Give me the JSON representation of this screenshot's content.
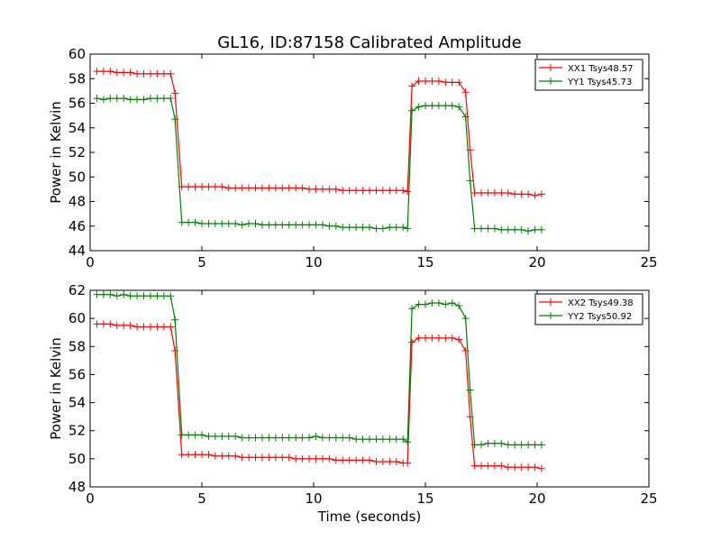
{
  "chart_data": [
    {
      "type": "line",
      "title": "GL16, ID:87158 Calibrated Amplitude",
      "xlabel": "",
      "ylabel": "Power in Kelvin",
      "xlim": [
        0,
        25
      ],
      "ylim": [
        44,
        60
      ],
      "xticks": [
        "0",
        "5",
        "10",
        "15",
        "20",
        "25"
      ],
      "yticks": [
        "44",
        "46",
        "48",
        "50",
        "52",
        "54",
        "56",
        "58",
        "60"
      ],
      "grid": false,
      "legend_position": "top-right",
      "series": [
        {
          "name": "XX1 Tsys48.57",
          "color": "#ff0000",
          "x": [
            0.3,
            0.6,
            0.9,
            1.2,
            1.5,
            1.8,
            2.1,
            2.4,
            2.7,
            3.0,
            3.3,
            3.6,
            3.8,
            4.1,
            4.4,
            4.7,
            5.0,
            5.3,
            5.6,
            5.9,
            6.2,
            6.5,
            6.8,
            7.1,
            7.4,
            7.7,
            8.0,
            8.3,
            8.6,
            8.9,
            9.2,
            9.5,
            9.8,
            10.1,
            10.4,
            10.7,
            11.0,
            11.3,
            11.6,
            11.9,
            12.2,
            12.5,
            12.8,
            13.1,
            13.4,
            13.7,
            14.0,
            14.2,
            14.4,
            14.7,
            15.0,
            15.3,
            15.6,
            15.9,
            16.2,
            16.5,
            16.8,
            17.0,
            17.2,
            17.5,
            17.8,
            18.1,
            18.4,
            18.7,
            19.0,
            19.3,
            19.6,
            19.9,
            20.2
          ],
          "y": [
            58.6,
            58.6,
            58.6,
            58.5,
            58.5,
            58.5,
            58.4,
            58.4,
            58.4,
            58.4,
            58.4,
            58.4,
            56.8,
            49.2,
            49.2,
            49.2,
            49.2,
            49.2,
            49.2,
            49.2,
            49.1,
            49.1,
            49.1,
            49.1,
            49.1,
            49.1,
            49.1,
            49.1,
            49.1,
            49.1,
            49.1,
            49.1,
            49.0,
            49.0,
            49.0,
            49.0,
            49.0,
            48.9,
            48.9,
            48.9,
            48.9,
            48.9,
            48.9,
            48.9,
            48.9,
            48.9,
            48.9,
            48.8,
            57.4,
            57.8,
            57.8,
            57.8,
            57.8,
            57.7,
            57.7,
            57.7,
            56.9,
            52.2,
            48.7,
            48.7,
            48.7,
            48.7,
            48.7,
            48.7,
            48.6,
            48.6,
            48.6,
            48.5,
            48.6
          ]
        },
        {
          "name": "YY1 Tsys45.73",
          "color": "#008000",
          "x": [
            0.3,
            0.6,
            0.9,
            1.2,
            1.5,
            1.8,
            2.1,
            2.4,
            2.7,
            3.0,
            3.3,
            3.6,
            3.8,
            4.1,
            4.4,
            4.7,
            5.0,
            5.3,
            5.6,
            5.9,
            6.2,
            6.5,
            6.8,
            7.1,
            7.4,
            7.7,
            8.0,
            8.3,
            8.6,
            8.9,
            9.2,
            9.5,
            9.8,
            10.1,
            10.4,
            10.7,
            11.0,
            11.3,
            11.6,
            11.9,
            12.2,
            12.5,
            12.8,
            13.1,
            13.4,
            13.7,
            14.0,
            14.2,
            14.4,
            14.7,
            15.0,
            15.3,
            15.6,
            15.9,
            16.2,
            16.5,
            16.8,
            17.0,
            17.2,
            17.5,
            17.8,
            18.1,
            18.4,
            18.7,
            19.0,
            19.3,
            19.6,
            19.9,
            20.2
          ],
          "y": [
            56.4,
            56.3,
            56.4,
            56.4,
            56.4,
            56.3,
            56.3,
            56.3,
            56.4,
            56.4,
            56.4,
            56.4,
            54.7,
            46.3,
            46.3,
            46.3,
            46.2,
            46.2,
            46.2,
            46.2,
            46.2,
            46.2,
            46.1,
            46.2,
            46.2,
            46.1,
            46.1,
            46.1,
            46.1,
            46.1,
            46.1,
            46.1,
            46.1,
            46.1,
            46.1,
            46.0,
            46.0,
            45.9,
            45.9,
            45.9,
            45.9,
            45.9,
            45.8,
            45.8,
            45.9,
            45.9,
            45.9,
            45.8,
            55.4,
            55.7,
            55.8,
            55.8,
            55.8,
            55.8,
            55.8,
            55.7,
            54.9,
            49.7,
            45.8,
            45.8,
            45.8,
            45.8,
            45.7,
            45.7,
            45.7,
            45.7,
            45.6,
            45.7,
            45.7
          ]
        }
      ]
    },
    {
      "type": "line",
      "title": "",
      "xlabel": "Time (seconds)",
      "ylabel": "Power in Kelvin",
      "xlim": [
        0,
        25
      ],
      "ylim": [
        48,
        62
      ],
      "xticks": [
        "0",
        "5",
        "10",
        "15",
        "20",
        "25"
      ],
      "yticks": [
        "48",
        "50",
        "52",
        "54",
        "56",
        "58",
        "60",
        "62"
      ],
      "grid": false,
      "legend_position": "top-right",
      "series": [
        {
          "name": "XX2 Tsys49.38",
          "color": "#ff0000",
          "x": [
            0.3,
            0.6,
            0.9,
            1.2,
            1.5,
            1.8,
            2.1,
            2.4,
            2.7,
            3.0,
            3.3,
            3.6,
            3.8,
            4.1,
            4.4,
            4.7,
            5.0,
            5.3,
            5.6,
            5.9,
            6.2,
            6.5,
            6.8,
            7.1,
            7.4,
            7.7,
            8.0,
            8.3,
            8.6,
            8.9,
            9.2,
            9.5,
            9.8,
            10.1,
            10.4,
            10.7,
            11.0,
            11.3,
            11.6,
            11.9,
            12.2,
            12.5,
            12.8,
            13.1,
            13.4,
            13.7,
            14.0,
            14.2,
            14.4,
            14.7,
            15.0,
            15.3,
            15.6,
            15.9,
            16.2,
            16.5,
            16.8,
            17.0,
            17.2,
            17.5,
            17.8,
            18.1,
            18.4,
            18.7,
            19.0,
            19.3,
            19.6,
            19.9,
            20.2
          ],
          "y": [
            59.6,
            59.6,
            59.6,
            59.5,
            59.5,
            59.5,
            59.4,
            59.4,
            59.4,
            59.4,
            59.4,
            59.4,
            57.7,
            50.3,
            50.3,
            50.3,
            50.3,
            50.3,
            50.2,
            50.2,
            50.2,
            50.2,
            50.1,
            50.1,
            50.1,
            50.1,
            50.1,
            50.1,
            50.1,
            50.1,
            50.0,
            50.0,
            50.0,
            50.0,
            50.0,
            50.0,
            49.9,
            49.9,
            49.9,
            49.9,
            49.9,
            49.9,
            49.8,
            49.8,
            49.8,
            49.8,
            49.7,
            49.7,
            58.3,
            58.6,
            58.6,
            58.6,
            58.6,
            58.6,
            58.6,
            58.5,
            57.7,
            53.0,
            49.5,
            49.5,
            49.5,
            49.5,
            49.5,
            49.4,
            49.4,
            49.4,
            49.4,
            49.4,
            49.3
          ]
        },
        {
          "name": "YY2 Tsys50.92",
          "color": "#008000",
          "x": [
            0.3,
            0.6,
            0.9,
            1.2,
            1.5,
            1.8,
            2.1,
            2.4,
            2.7,
            3.0,
            3.3,
            3.6,
            3.8,
            4.1,
            4.4,
            4.7,
            5.0,
            5.3,
            5.6,
            5.9,
            6.2,
            6.5,
            6.8,
            7.1,
            7.4,
            7.7,
            8.0,
            8.3,
            8.6,
            8.9,
            9.2,
            9.5,
            9.8,
            10.1,
            10.4,
            10.7,
            11.0,
            11.3,
            11.6,
            11.9,
            12.2,
            12.5,
            12.8,
            13.1,
            13.4,
            13.7,
            14.0,
            14.2,
            14.4,
            14.7,
            15.0,
            15.3,
            15.6,
            15.9,
            16.2,
            16.5,
            16.8,
            17.0,
            17.2,
            17.5,
            17.8,
            18.1,
            18.4,
            18.7,
            19.0,
            19.3,
            19.6,
            19.9,
            20.2
          ],
          "y": [
            61.7,
            61.7,
            61.7,
            61.6,
            61.7,
            61.6,
            61.6,
            61.6,
            61.6,
            61.6,
            61.6,
            61.6,
            59.9,
            51.7,
            51.7,
            51.7,
            51.7,
            51.6,
            51.6,
            51.6,
            51.6,
            51.6,
            51.5,
            51.5,
            51.5,
            51.5,
            51.5,
            51.5,
            51.5,
            51.5,
            51.5,
            51.5,
            51.5,
            51.6,
            51.5,
            51.5,
            51.5,
            51.5,
            51.5,
            51.4,
            51.4,
            51.4,
            51.4,
            51.4,
            51.4,
            51.4,
            51.4,
            51.2,
            60.7,
            61.0,
            61.0,
            61.1,
            61.1,
            61.0,
            61.1,
            60.9,
            60.0,
            54.9,
            51.0,
            51.0,
            51.1,
            51.1,
            51.1,
            51.0,
            51.0,
            51.0,
            51.0,
            51.0,
            51.0
          ]
        }
      ]
    }
  ]
}
